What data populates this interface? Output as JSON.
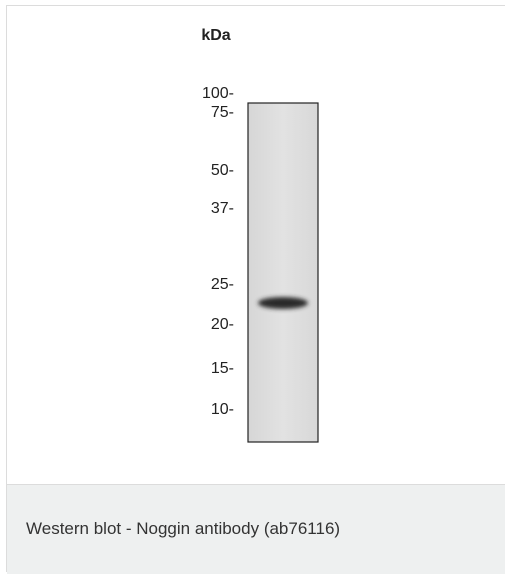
{
  "figure": {
    "unit_label": "kDa",
    "markers": [
      "100-",
      "75-",
      "50-",
      "37-",
      "25-",
      "20-",
      "15-",
      "10-"
    ],
    "caption": "Western blot - Noggin antibody (ab76116)"
  }
}
